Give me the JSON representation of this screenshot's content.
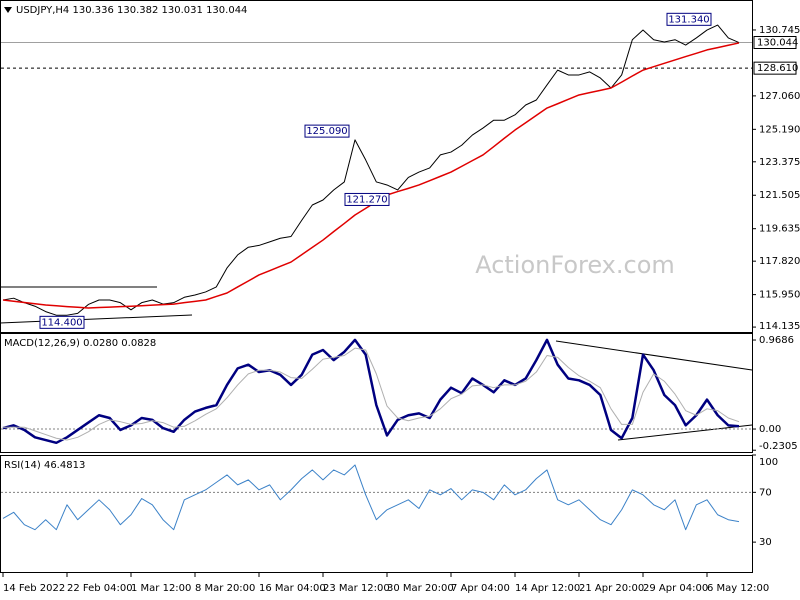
{
  "watermark": "ActionForex.com",
  "chart_data": [
    {
      "type": "line",
      "title": "USDJPY,H4 130.336 130.382 130.031 130.044",
      "categories": [
        "14 Feb 2022",
        null,
        null,
        null,
        null,
        null,
        "22 Feb 04:00",
        null,
        null,
        null,
        null,
        null,
        "1 Mar 12:00",
        null,
        null,
        null,
        null,
        null,
        "8 Mar 20:00",
        null,
        null,
        null,
        null,
        null,
        "16 Mar 04:00",
        null,
        null,
        null,
        null,
        null,
        "23 Mar 12:00",
        null,
        null,
        null,
        null,
        null,
        "30 Mar 20:00",
        null,
        null,
        null,
        null,
        null,
        "7 Apr 04:00",
        null,
        null,
        null,
        null,
        null,
        "14 Apr 12:00",
        null,
        null,
        null,
        null,
        null,
        "21 Apr 20:00",
        null,
        null,
        null,
        null,
        null,
        "29 Apr 04:00",
        null,
        null,
        null,
        null,
        null,
        "6 May 12:00",
        null,
        null,
        null
      ],
      "series": [
        {
          "color": "#000000",
          "values": [
            115.65,
            115.75,
            115.5,
            115.3,
            115.0,
            114.8,
            114.8,
            114.9,
            115.4,
            115.65,
            115.65,
            115.5,
            115.1,
            115.5,
            115.65,
            115.42,
            115.5,
            115.8,
            115.93,
            116.1,
            116.38,
            117.44,
            118.17,
            118.6,
            118.7,
            118.9,
            119.1,
            119.2,
            120.1,
            120.96,
            121.24,
            121.8,
            122.25,
            124.6,
            123.48,
            122.25,
            122.08,
            121.8,
            122.5,
            122.8,
            123.03,
            123.76,
            123.92,
            124.3,
            124.87,
            125.26,
            125.7,
            125.7,
            126.0,
            126.55,
            126.83,
            127.67,
            128.5,
            128.23,
            128.23,
            128.4,
            128.06,
            127.5,
            128.23,
            130.2,
            130.74,
            130.2,
            130.07,
            130.2,
            129.9,
            130.3,
            130.74,
            131.02,
            130.3,
            130.04
          ]
        },
        {
          "color": "#e00000",
          "values": [
            115.65,
            115.58,
            115.51,
            115.44,
            115.37,
            115.33,
            115.28,
            115.24,
            115.2,
            115.23,
            115.25,
            115.28,
            115.3,
            115.33,
            115.36,
            115.39,
            115.42,
            115.5,
            115.57,
            115.65,
            115.85,
            116.04,
            116.38,
            116.71,
            117.05,
            117.29,
            117.53,
            117.77,
            118.18,
            118.59,
            119.0,
            119.47,
            119.93,
            120.4,
            120.77,
            121.15,
            121.52,
            121.71,
            121.89,
            122.08,
            122.32,
            122.56,
            122.8,
            123.12,
            123.44,
            123.76,
            124.22,
            124.69,
            125.15,
            125.56,
            125.97,
            126.38,
            126.62,
            126.87,
            127.11,
            127.24,
            127.37,
            127.5,
            127.83,
            128.17,
            128.5,
            128.69,
            128.88,
            129.07,
            129.26,
            129.44,
            129.63,
            129.76,
            129.89,
            130.02
          ]
        }
      ],
      "ylim": [
        113.86,
        132.42
      ],
      "yticks": [
        130.745,
        {
          "value": 127.06,
          "label": "127.060"
        },
        {
          "value": 125.19,
          "label": "125.190"
        },
        123.375,
        121.505,
        119.635,
        {
          "value": 117.82,
          "label": "117.820"
        },
        {
          "value": 115.95,
          "label": "115.950"
        },
        114.135
      ],
      "grid": false,
      "last_price": 130.044,
      "reference_level": {
        "value": 128.61,
        "label": "128.610"
      },
      "annotations": [
        {
          "value": 131.34,
          "label": "131.340"
        },
        {
          "value": 125.09,
          "label": "125.090"
        },
        {
          "value": 121.27,
          "label": "121.270"
        },
        {
          "value": 114.4,
          "label": "114.400"
        }
      ]
    },
    {
      "type": "line",
      "title": "MACD(12,26,9) 0.0280 0.0828",
      "series": [
        {
          "color": "#000080",
          "values": [
            0.01,
            0.04,
            -0.01,
            -0.09,
            -0.12,
            -0.15,
            -0.09,
            -0.01,
            0.07,
            0.15,
            0.12,
            -0.01,
            0.04,
            0.12,
            0.1,
            0.01,
            -0.03,
            0.1,
            0.19,
            0.23,
            0.26,
            0.48,
            0.66,
            0.7,
            0.62,
            0.64,
            0.59,
            0.48,
            0.59,
            0.81,
            0.86,
            0.75,
            0.84,
            0.97,
            0.81,
            0.26,
            -0.07,
            0.1,
            0.15,
            0.17,
            0.12,
            0.32,
            0.45,
            0.39,
            0.55,
            0.48,
            0.4,
            0.53,
            0.48,
            0.55,
            0.75,
            0.97,
            0.7,
            0.55,
            0.53,
            0.48,
            0.37,
            -0.01,
            -0.1,
            0.12,
            0.81,
            0.64,
            0.37,
            0.26,
            0.04,
            0.15,
            0.32,
            0.15,
            0.04,
            0.03
          ]
        },
        {
          "color": "#b0b0b0",
          "values": [
            0.02,
            0.02,
            0.02,
            -0.02,
            -0.06,
            -0.1,
            -0.12,
            -0.09,
            -0.03,
            0.05,
            0.1,
            0.08,
            0.05,
            0.06,
            0.09,
            0.07,
            0.02,
            0.03,
            0.09,
            0.16,
            0.22,
            0.34,
            0.48,
            0.6,
            0.64,
            0.64,
            0.62,
            0.56,
            0.55,
            0.65,
            0.76,
            0.78,
            0.8,
            0.88,
            0.86,
            0.6,
            0.25,
            0.12,
            0.09,
            0.12,
            0.14,
            0.22,
            0.33,
            0.38,
            0.47,
            0.48,
            0.45,
            0.48,
            0.48,
            0.52,
            0.62,
            0.8,
            0.78,
            0.67,
            0.58,
            0.52,
            0.45,
            0.22,
            0.05,
            0.05,
            0.4,
            0.6,
            0.52,
            0.38,
            0.2,
            0.15,
            0.22,
            0.2,
            0.12,
            0.08
          ]
        }
      ],
      "ylim": [
        -0.25,
        1.045
      ],
      "yticks": [
        0.9686,
        {
          "value": 0,
          "label": "0.00"
        },
        -0.2305
      ],
      "grid": true
    },
    {
      "type": "line",
      "title": "RSI(14) 46.4813",
      "series": [
        {
          "color": "#3c82c8",
          "values": [
            49,
            54,
            44,
            40,
            48,
            40,
            60,
            48,
            56,
            64,
            56,
            44,
            52,
            65,
            60,
            48,
            40,
            64,
            68,
            72,
            78,
            84,
            76,
            80,
            72,
            76,
            64,
            72,
            81,
            88,
            80,
            88,
            84,
            92,
            68,
            48,
            56,
            60,
            64,
            57,
            72,
            68,
            73,
            64,
            72,
            70,
            64,
            76,
            68,
            72,
            81,
            88,
            64,
            60,
            64,
            56,
            48,
            44,
            56,
            72,
            68,
            60,
            56,
            64,
            40,
            60,
            64,
            52,
            48,
            46.5
          ]
        }
      ],
      "ylim": [
        6,
        100
      ],
      "yticks": [
        100,
        70,
        30
      ],
      "grid": true
    }
  ]
}
